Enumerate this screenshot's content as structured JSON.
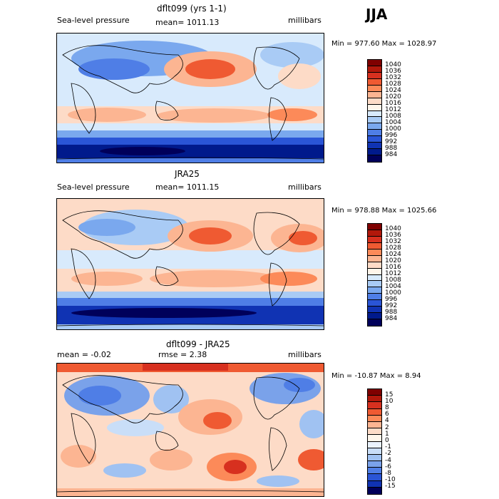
{
  "season": "JJA",
  "panels": [
    {
      "title": "dflt099 (yrs 1-1)",
      "left_label": "Sea-level pressure",
      "center_label": "mean= 1011.13",
      "right_label": "millibars",
      "stats": "Min = 977.60 Max = 1028.97",
      "colorbar": {
        "labels": [
          "1040",
          "1036",
          "1032",
          "1028",
          "1024",
          "1020",
          "1016",
          "1012",
          "1008",
          "1004",
          "1000",
          "996",
          "992",
          "988",
          "984"
        ],
        "colors": [
          "#7f0000",
          "#b2180b",
          "#d7301f",
          "#ef5a32",
          "#fc8a59",
          "#fcb592",
          "#fddbc7",
          "#fff5ea",
          "#d8eafc",
          "#a9cbf5",
          "#7aa8ee",
          "#4f7ee6",
          "#2a55d6",
          "#1033b3",
          "#001a8c",
          "#00005a"
        ]
      }
    },
    {
      "title": "JRA25",
      "left_label": "Sea-level pressure",
      "center_label": "mean= 1011.15",
      "right_label": "millibars",
      "stats": "Min = 978.88 Max = 1025.66",
      "colorbar": {
        "labels": [
          "1040",
          "1036",
          "1032",
          "1028",
          "1024",
          "1020",
          "1016",
          "1012",
          "1008",
          "1004",
          "1000",
          "996",
          "992",
          "988",
          "984"
        ],
        "colors": [
          "#7f0000",
          "#b2180b",
          "#d7301f",
          "#ef5a32",
          "#fc8a59",
          "#fcb592",
          "#fddbc7",
          "#fff5ea",
          "#d8eafc",
          "#a9cbf5",
          "#7aa8ee",
          "#4f7ee6",
          "#2a55d6",
          "#1033b3",
          "#001a8c",
          "#00005a"
        ]
      }
    },
    {
      "title": "dflt099 - JRA25",
      "left_label": "mean =   -0.02",
      "center_label": "rmse =    2.38",
      "right_label": "millibars",
      "stats": "Min = -10.87 Max =    8.94",
      "colorbar": {
        "labels": [
          "15",
          "10",
          "8",
          "6",
          "4",
          "2",
          "1",
          "0",
          "-1",
          "-2",
          "-4",
          "-6",
          "-8",
          "-10",
          "-15"
        ],
        "colors": [
          "#7f0000",
          "#b2180b",
          "#d7301f",
          "#ef5a32",
          "#fc8a59",
          "#fcb592",
          "#fddbc7",
          "#fff5ea",
          "#eaf3fd",
          "#c9def8",
          "#a0c2f2",
          "#7aa2ea",
          "#4f7ee6",
          "#2a55d6",
          "#1033b3",
          "#00005a"
        ]
      }
    }
  ]
}
